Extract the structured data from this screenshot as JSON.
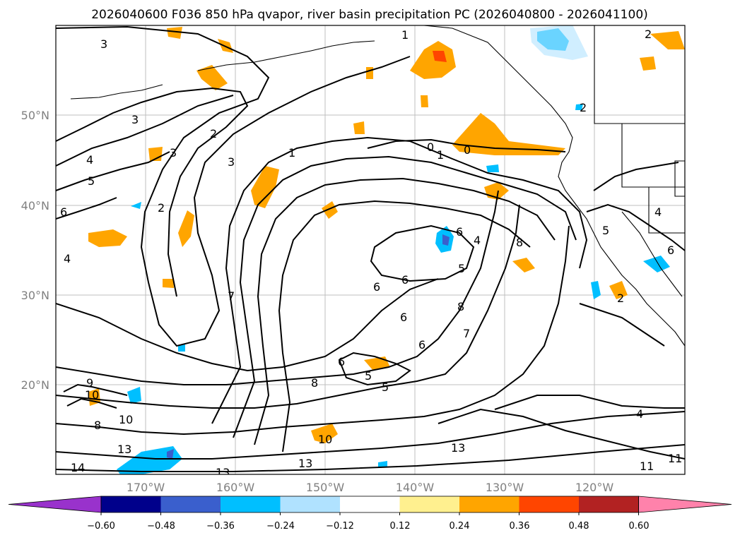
{
  "chart_data": {
    "type": "contour_map",
    "title": "2026040600 F036 850 hPa qvapor, river basin precipitation PC (2026040800 - 2026041100)",
    "lat_ticks": [
      "50°N",
      "40°N",
      "30°N",
      "20°N"
    ],
    "lon_ticks": [
      "170°W",
      "160°W",
      "150°W",
      "140°W",
      "130°W",
      "120°W"
    ],
    "grid": true,
    "contour_labels": [
      "3",
      "3",
      "3",
      "3",
      "2",
      "2",
      "2",
      "1",
      "1",
      "1",
      "0",
      "0",
      "4",
      "5",
      "5",
      "6",
      "6",
      "6",
      "6",
      "6",
      "6",
      "6",
      "4",
      "4",
      "5",
      "5",
      "8",
      "8",
      "7",
      "7",
      "9",
      "8",
      "10",
      "10",
      "10",
      "13",
      "13",
      "13",
      "13",
      "14",
      "4",
      "5",
      "8",
      "2",
      "2",
      "11",
      "11",
      "4",
      "6"
    ],
    "colorbar": {
      "colors": [
        "#9932cc",
        "#00008b",
        "#3a5fcd",
        "#00bfff",
        "#b0e2ff",
        "#ffffff",
        "#fff08f",
        "#ffa500",
        "#ff4500",
        "#b22222",
        "#ff82ab"
      ],
      "tick_labels": [
        "−0.60",
        "−0.48",
        "−0.36",
        "−0.24",
        "−0.12",
        "0.12",
        "0.24",
        "0.36",
        "0.48",
        "0.60"
      ]
    },
    "shaded_positive_colors": [
      "#fff08f",
      "#ffa500",
      "#ff4500"
    ],
    "shaded_negative_colors": [
      "#b0e2ff",
      "#00bfff",
      "#3a5fcd"
    ]
  }
}
